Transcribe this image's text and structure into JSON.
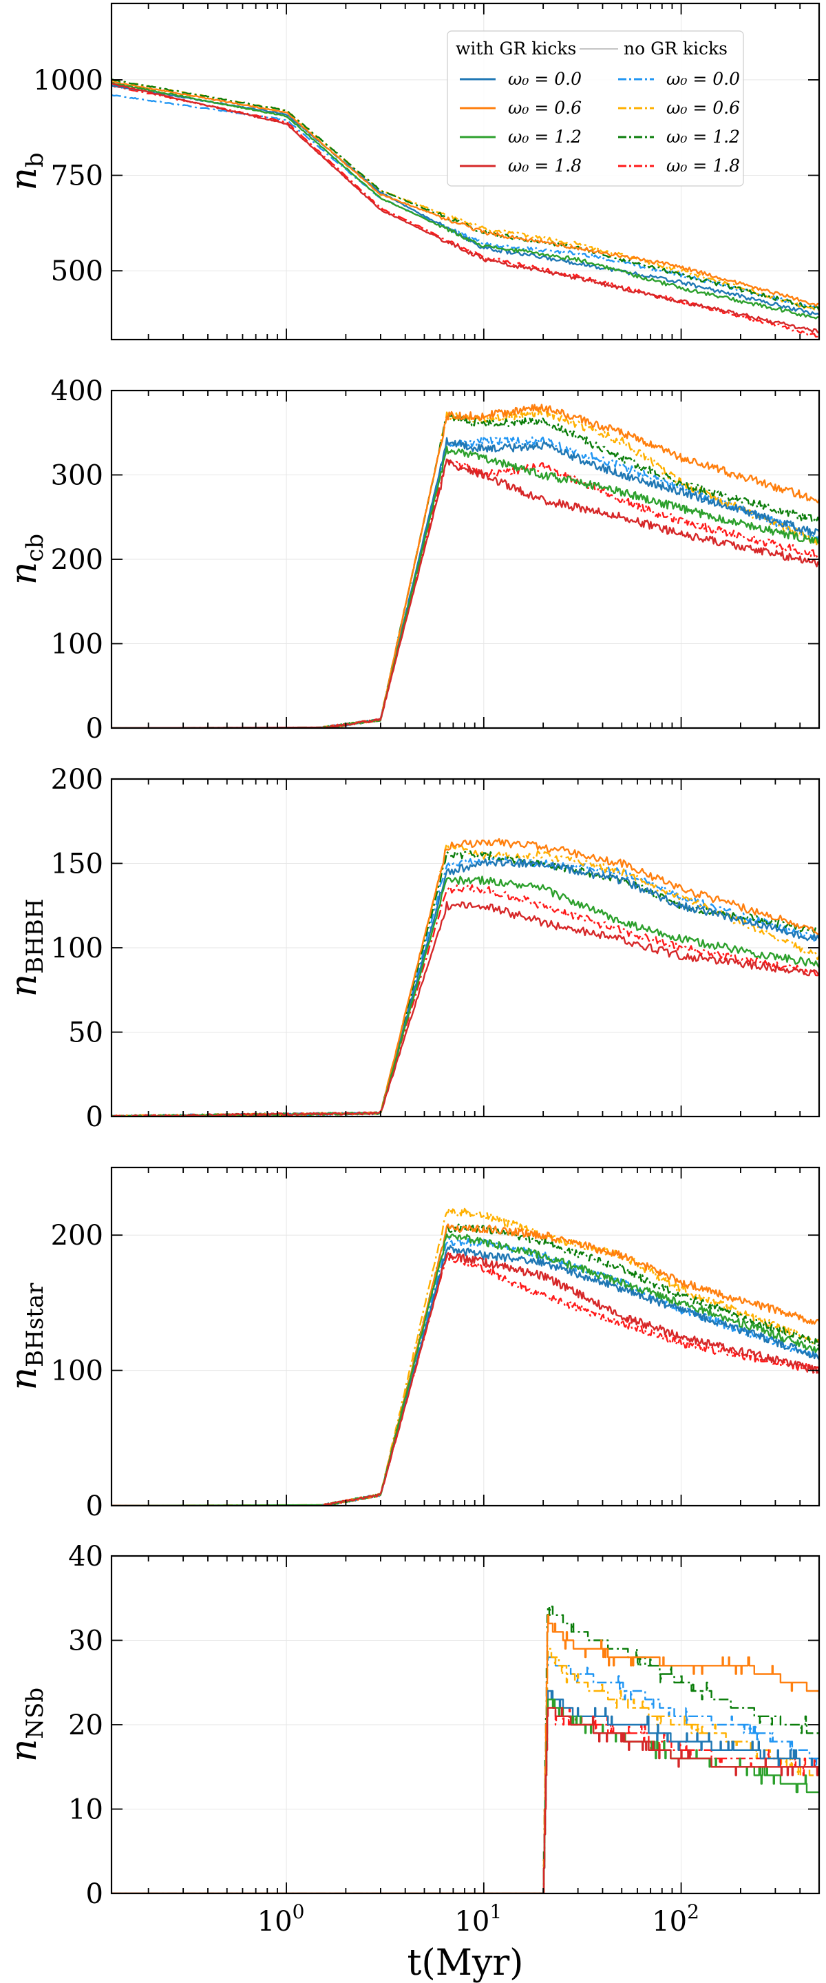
{
  "figure": {
    "x_axis_label": "t(Myr)",
    "x_scale": "log",
    "x_range": [
      0.13,
      500
    ],
    "x_tick_labels": [
      {
        "value": 1,
        "base": "10",
        "exponent": "0"
      },
      {
        "value": 10,
        "base": "10",
        "exponent": "1"
      },
      {
        "value": 100,
        "base": "10",
        "exponent": "2"
      }
    ]
  },
  "legend": {
    "placement": "top-right of first panel",
    "with_kicks_header": "with GR kicks",
    "no_kicks_header": "no GR kicks",
    "entries": [
      {
        "label": "ω₀ = 0.0",
        "color": "#1f77b4",
        "dash_color": "#2196f3"
      },
      {
        "label": "ω₀ = 0.6",
        "color": "#ff7f0e",
        "dash_color": "#ffb000"
      },
      {
        "label": "ω₀ = 1.2",
        "color": "#2ca02c",
        "dash_color": "#0a7d0a"
      },
      {
        "label": "ω₀ = 1.8",
        "color": "#d62728",
        "dash_color": "#ff1a1a"
      }
    ]
  },
  "chart_data": [
    {
      "type": "line",
      "ylabel": "n",
      "ylabel_sub": "b",
      "ylim": [
        320,
        1200
      ],
      "yticks": [
        500,
        750,
        1000
      ],
      "growth_start": null,
      "series": [
        {
          "name": "with GR kicks, ω₀ = 0.0",
          "style": "solid",
          "color": "#1f77b4",
          "x": [
            0.13,
            1,
            3,
            10,
            30,
            100,
            500
          ],
          "y": [
            985,
            910,
            705,
            560,
            520,
            470,
            385
          ]
        },
        {
          "name": "with GR kicks, ω₀ = 0.6",
          "style": "solid",
          "color": "#ff7f0e",
          "x": [
            0.13,
            1,
            3,
            10,
            30,
            100,
            500
          ],
          "y": [
            995,
            915,
            700,
            600,
            560,
            510,
            410
          ]
        },
        {
          "name": "with GR kicks, ω₀ = 1.2",
          "style": "solid",
          "color": "#2ca02c",
          "x": [
            0.13,
            1,
            3,
            10,
            30,
            100,
            500
          ],
          "y": [
            992,
            905,
            690,
            565,
            530,
            455,
            375
          ]
        },
        {
          "name": "with GR kicks, ω₀ = 1.8",
          "style": "solid",
          "color": "#d62728",
          "x": [
            0.13,
            1,
            3,
            10,
            30,
            100,
            500
          ],
          "y": [
            990,
            885,
            660,
            530,
            480,
            420,
            340
          ]
        },
        {
          "name": "no GR kicks, ω₀ = 0.0",
          "style": "dashdot",
          "color": "#2196f3",
          "x": [
            0.13,
            1,
            3,
            10,
            30,
            100,
            500
          ],
          "y": [
            960,
            895,
            690,
            570,
            545,
            490,
            400
          ]
        },
        {
          "name": "no GR kicks, ω₀ = 0.6",
          "style": "dashdot",
          "color": "#ffb000",
          "x": [
            0.13,
            1,
            3,
            10,
            30,
            100,
            500
          ],
          "y": [
            1000,
            920,
            710,
            610,
            570,
            500,
            395
          ]
        },
        {
          "name": "no GR kicks, ω₀ = 1.2",
          "style": "dashdot",
          "color": "#0a7d0a",
          "x": [
            0.13,
            1,
            3,
            10,
            30,
            100,
            500
          ],
          "y": [
            1000,
            920,
            710,
            600,
            560,
            490,
            400
          ]
        },
        {
          "name": "no GR kicks, ω₀ = 1.8",
          "style": "dashdot",
          "color": "#ff1a1a",
          "x": [
            0.13,
            1,
            3,
            10,
            30,
            100,
            500
          ],
          "y": [
            985,
            890,
            665,
            535,
            485,
            420,
            330
          ]
        }
      ]
    },
    {
      "type": "line",
      "ylabel": "n",
      "ylabel_sub": "cb",
      "ylim": [
        0,
        400
      ],
      "yticks": [
        0,
        100,
        200,
        300,
        400
      ],
      "growth_start": 1.5,
      "series": [
        {
          "name": "with GR kicks, ω₀ = 0.0",
          "style": "solid",
          "color": "#1f77b4",
          "x": [
            1.5,
            3,
            6.5,
            10,
            20,
            50,
            100,
            500
          ],
          "y": [
            0,
            10,
            340,
            330,
            335,
            300,
            280,
            230
          ]
        },
        {
          "name": "with GR kicks, ω₀ = 0.6",
          "style": "solid",
          "color": "#ff7f0e",
          "x": [
            1.5,
            3,
            6.5,
            10,
            20,
            50,
            100,
            500
          ],
          "y": [
            0,
            10,
            370,
            370,
            380,
            350,
            320,
            270
          ]
        },
        {
          "name": "with GR kicks, ω₀ = 1.2",
          "style": "solid",
          "color": "#2ca02c",
          "x": [
            1.5,
            3,
            6.5,
            10,
            20,
            50,
            100,
            500
          ],
          "y": [
            0,
            10,
            330,
            320,
            300,
            280,
            260,
            220
          ]
        },
        {
          "name": "with GR kicks, ω₀ = 1.8",
          "style": "solid",
          "color": "#d62728",
          "x": [
            1.5,
            3,
            6.5,
            10,
            20,
            50,
            100,
            500
          ],
          "y": [
            0,
            10,
            315,
            300,
            270,
            250,
            230,
            195
          ]
        },
        {
          "name": "no GR kicks, ω₀ = 0.0",
          "style": "dashdot",
          "color": "#2196f3",
          "x": [
            1.5,
            3,
            6.5,
            10,
            20,
            50,
            100,
            500
          ],
          "y": [
            0,
            10,
            335,
            340,
            340,
            310,
            285,
            225
          ]
        },
        {
          "name": "no GR kicks, ω₀ = 0.6",
          "style": "dashdot",
          "color": "#ffb000",
          "x": [
            1.5,
            3,
            6.5,
            10,
            20,
            50,
            100,
            500
          ],
          "y": [
            0,
            10,
            370,
            365,
            375,
            340,
            290,
            220
          ]
        },
        {
          "name": "no GR kicks, ω₀ = 1.2",
          "style": "dashdot",
          "color": "#0a7d0a",
          "x": [
            1.5,
            3,
            6.5,
            10,
            20,
            50,
            100,
            500
          ],
          "y": [
            0,
            10,
            370,
            360,
            365,
            320,
            290,
            245
          ]
        },
        {
          "name": "no GR kicks, ω₀ = 1.8",
          "style": "dashdot",
          "color": "#ff1a1a",
          "x": [
            1.5,
            3,
            6.5,
            10,
            20,
            50,
            100,
            500
          ],
          "y": [
            0,
            10,
            320,
            300,
            310,
            270,
            245,
            205
          ]
        }
      ]
    },
    {
      "type": "line",
      "ylabel": "n",
      "ylabel_sub": "BHBH",
      "ylim": [
        0,
        200
      ],
      "yticks": [
        0,
        50,
        100,
        150,
        200
      ],
      "growth_start": 0.13,
      "series": [
        {
          "name": "with GR kicks, ω₀ = 0.0",
          "style": "solid",
          "color": "#1f77b4",
          "x": [
            0.13,
            3,
            6.5,
            10,
            20,
            50,
            100,
            500
          ],
          "y": [
            0,
            2,
            145,
            150,
            150,
            140,
            125,
            105
          ]
        },
        {
          "name": "with GR kicks, ω₀ = 0.6",
          "style": "solid",
          "color": "#ff7f0e",
          "x": [
            0.13,
            3,
            6.5,
            10,
            20,
            50,
            100,
            500
          ],
          "y": [
            0,
            2,
            160,
            163,
            160,
            150,
            135,
            110
          ]
        },
        {
          "name": "with GR kicks, ω₀ = 1.2",
          "style": "solid",
          "color": "#2ca02c",
          "x": [
            0.13,
            3,
            6.5,
            10,
            20,
            50,
            100,
            500
          ],
          "y": [
            0,
            2,
            140,
            140,
            135,
            115,
            105,
            90
          ]
        },
        {
          "name": "with GR kicks, ω₀ = 1.8",
          "style": "solid",
          "color": "#d62728",
          "x": [
            0.13,
            3,
            6.5,
            10,
            20,
            50,
            100,
            500
          ],
          "y": [
            0,
            2,
            125,
            125,
            115,
            105,
            95,
            85
          ]
        },
        {
          "name": "no GR kicks, ω₀ = 0.0",
          "style": "dashdot",
          "color": "#2196f3",
          "x": [
            0.13,
            3,
            6.5,
            10,
            20,
            50,
            100,
            500
          ],
          "y": [
            0,
            2,
            150,
            152,
            150,
            145,
            130,
            105
          ]
        },
        {
          "name": "no GR kicks, ω₀ = 0.6",
          "style": "dashdot",
          "color": "#ffb000",
          "x": [
            0.13,
            3,
            6.5,
            10,
            20,
            50,
            100,
            500
          ],
          "y": [
            0,
            2,
            160,
            155,
            155,
            145,
            130,
            95
          ]
        },
        {
          "name": "no GR kicks, ω₀ = 1.2",
          "style": "dashdot",
          "color": "#0a7d0a",
          "x": [
            0.13,
            3,
            6.5,
            10,
            20,
            50,
            100,
            500
          ],
          "y": [
            0,
            2,
            155,
            155,
            150,
            140,
            125,
            110
          ]
        },
        {
          "name": "no GR kicks, ω₀ = 1.8",
          "style": "dashdot",
          "color": "#ff1a1a",
          "x": [
            0.13,
            3,
            6.5,
            10,
            20,
            50,
            100,
            500
          ],
          "y": [
            0,
            2,
            135,
            135,
            125,
            110,
            100,
            85
          ]
        }
      ]
    },
    {
      "type": "line",
      "ylabel": "n",
      "ylabel_sub": "BHstar",
      "ylim": [
        0,
        250
      ],
      "yticks": [
        0,
        100,
        200
      ],
      "growth_start": 1.5,
      "series": [
        {
          "name": "with GR kicks, ω₀ = 0.0",
          "style": "solid",
          "color": "#1f77b4",
          "x": [
            1.5,
            3,
            6.5,
            10,
            20,
            50,
            100,
            500
          ],
          "y": [
            0,
            8,
            190,
            185,
            180,
            160,
            145,
            110
          ]
        },
        {
          "name": "with GR kicks, ω₀ = 0.6",
          "style": "solid",
          "color": "#ff7f0e",
          "x": [
            1.5,
            3,
            6.5,
            10,
            20,
            50,
            100,
            500
          ],
          "y": [
            0,
            8,
            205,
            205,
            200,
            185,
            165,
            135
          ]
        },
        {
          "name": "with GR kicks, ω₀ = 1.2",
          "style": "solid",
          "color": "#2ca02c",
          "x": [
            1.5,
            3,
            6.5,
            10,
            20,
            50,
            100,
            500
          ],
          "y": [
            0,
            8,
            200,
            195,
            185,
            165,
            150,
            115
          ]
        },
        {
          "name": "with GR kicks, ω₀ = 1.8",
          "style": "solid",
          "color": "#d62728",
          "x": [
            1.5,
            3,
            6.5,
            10,
            20,
            50,
            100,
            500
          ],
          "y": [
            0,
            8,
            185,
            180,
            170,
            140,
            125,
            100
          ]
        },
        {
          "name": "no GR kicks, ω₀ = 0.0",
          "style": "dashdot",
          "color": "#2196f3",
          "x": [
            1.5,
            3,
            6.5,
            10,
            20,
            50,
            100,
            500
          ],
          "y": [
            0,
            8,
            195,
            195,
            185,
            165,
            145,
            110
          ]
        },
        {
          "name": "no GR kicks, ω₀ = 0.6",
          "style": "dashdot",
          "color": "#ffb000",
          "x": [
            1.5,
            3,
            6.5,
            10,
            20,
            50,
            100,
            500
          ],
          "y": [
            0,
            8,
            218,
            215,
            200,
            185,
            160,
            120
          ]
        },
        {
          "name": "no GR kicks, ω₀ = 1.2",
          "style": "dashdot",
          "color": "#0a7d0a",
          "x": [
            1.5,
            3,
            6.5,
            10,
            20,
            50,
            100,
            500
          ],
          "y": [
            0,
            8,
            205,
            205,
            195,
            175,
            155,
            120
          ]
        },
        {
          "name": "no GR kicks, ω₀ = 1.8",
          "style": "dashdot",
          "color": "#ff1a1a",
          "x": [
            1.5,
            3,
            6.5,
            10,
            20,
            50,
            100,
            500
          ],
          "y": [
            0,
            8,
            185,
            175,
            155,
            135,
            120,
            100
          ]
        }
      ]
    },
    {
      "type": "line",
      "ylabel": "n",
      "ylabel_sub": "NSb",
      "ylim": [
        0,
        40
      ],
      "yticks": [
        0,
        10,
        20,
        30,
        40
      ],
      "growth_start": 17,
      "series": [
        {
          "name": "with GR kicks, ω₀ = 0.0",
          "style": "solid",
          "color": "#1f77b4",
          "x": [
            17,
            20,
            21,
            30,
            60,
            100,
            200,
            500
          ],
          "y": [
            0,
            0,
            24,
            21,
            20,
            18,
            17,
            15
          ]
        },
        {
          "name": "with GR kicks, ω₀ = 0.6",
          "style": "solid",
          "color": "#ff7f0e",
          "x": [
            17,
            20,
            21,
            30,
            60,
            100,
            200,
            500
          ],
          "y": [
            0,
            0,
            32,
            29,
            28,
            27,
            27,
            24
          ]
        },
        {
          "name": "with GR kicks, ω₀ = 1.2",
          "style": "solid",
          "color": "#2ca02c",
          "x": [
            17,
            20,
            21,
            30,
            60,
            100,
            200,
            500
          ],
          "y": [
            0,
            0,
            23,
            20,
            18,
            16,
            15,
            12
          ]
        },
        {
          "name": "with GR kicks, ω₀ = 1.8",
          "style": "solid",
          "color": "#d62728",
          "x": [
            17,
            20,
            21,
            30,
            60,
            100,
            200,
            500
          ],
          "y": [
            0,
            0,
            22,
            20,
            18,
            16,
            15,
            15
          ]
        },
        {
          "name": "no GR kicks, ω₀ = 0.0",
          "style": "dashdot",
          "color": "#2196f3",
          "x": [
            17,
            20,
            21,
            30,
            60,
            100,
            200,
            500
          ],
          "y": [
            0,
            0,
            28,
            26,
            24,
            21,
            20,
            16
          ]
        },
        {
          "name": "no GR kicks, ω₀ = 0.6",
          "style": "dashdot",
          "color": "#ffb000",
          "x": [
            17,
            20,
            21,
            30,
            60,
            100,
            200,
            500
          ],
          "y": [
            0,
            0,
            29,
            25,
            22,
            20,
            18,
            14
          ]
        },
        {
          "name": "no GR kicks, ω₀ = 1.2",
          "style": "dashdot",
          "color": "#0a7d0a",
          "x": [
            17,
            20,
            21,
            30,
            60,
            100,
            200,
            500
          ],
          "y": [
            0,
            0,
            34,
            31,
            28,
            25,
            22,
            19
          ]
        },
        {
          "name": "no GR kicks, ω₀ = 1.8",
          "style": "dashdot",
          "color": "#ff1a1a",
          "x": [
            17,
            20,
            21,
            30,
            60,
            100,
            200,
            500
          ],
          "y": [
            0,
            0,
            22,
            20,
            19,
            17,
            16,
            15
          ]
        }
      ]
    }
  ]
}
